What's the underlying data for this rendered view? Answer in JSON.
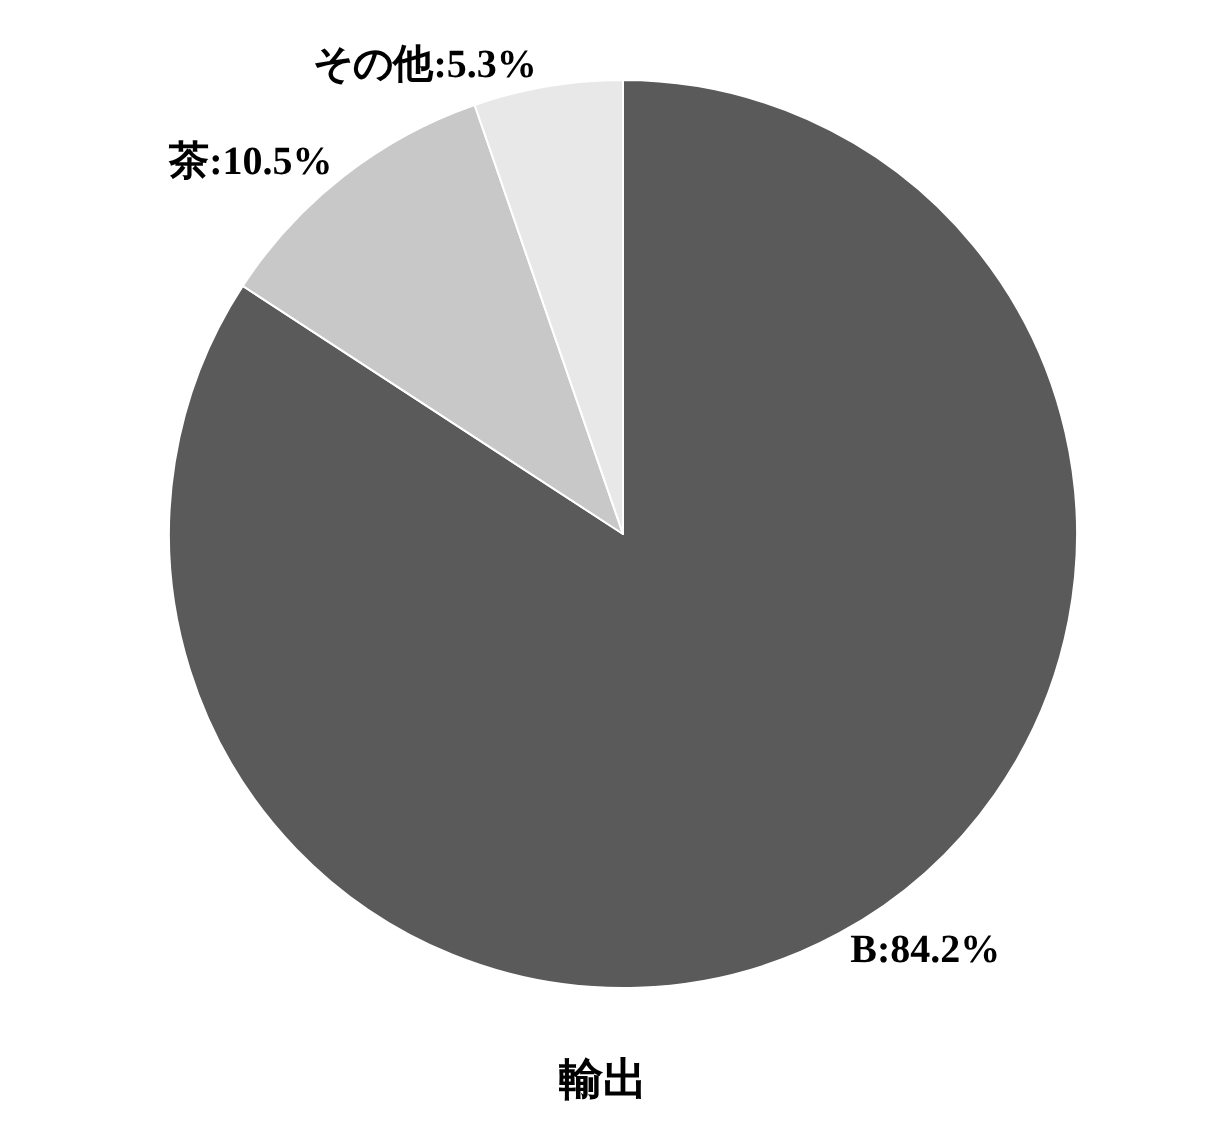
{
  "chart_data": {
    "type": "pie",
    "title": "輸出",
    "categories": [
      "B:84.2%",
      "茶:10.5%",
      "その他:5.3%"
    ],
    "values": [
      84.2,
      10.5,
      5.3
    ],
    "colors": [
      "#5a5a5a",
      "#c8c8c8",
      "#e8e8e8"
    ],
    "legend": false
  }
}
